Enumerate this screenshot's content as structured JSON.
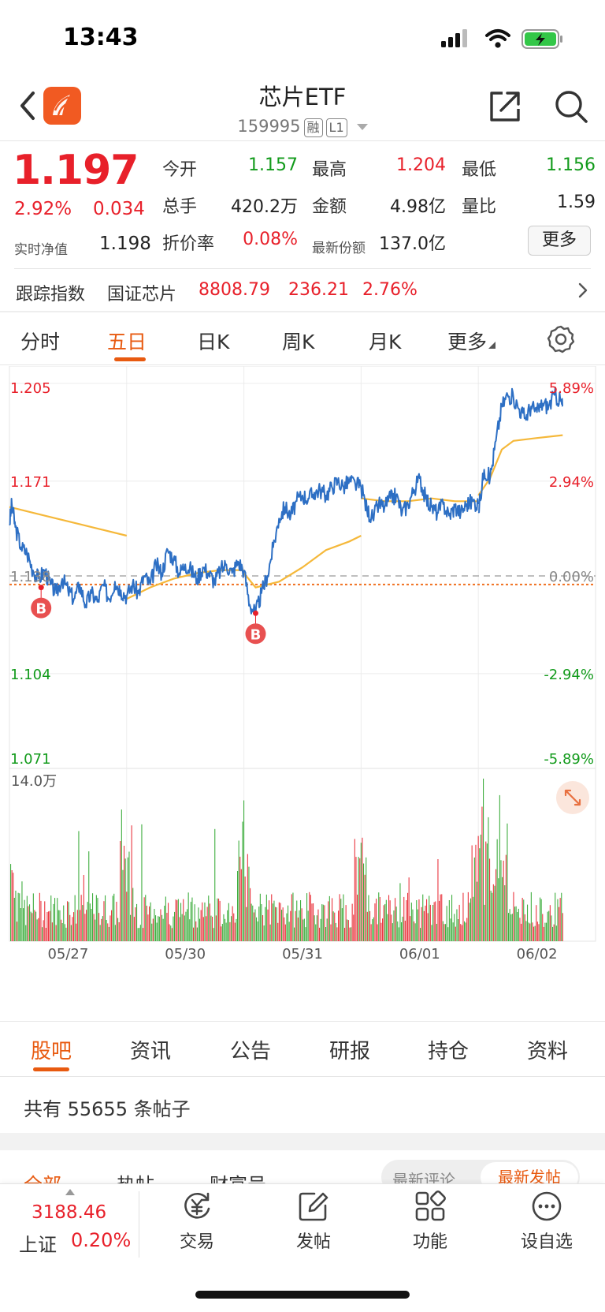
{
  "status_bar": {
    "time": "13:43"
  },
  "header": {
    "title": "芯片ETF",
    "code": "159995",
    "tag_margin": "融",
    "tag_level": "L1"
  },
  "quote": {
    "price": "1.197",
    "change_pct": "2.92%",
    "change_amt": "0.034",
    "nav_label": "实时净值",
    "nav_value": "1.198",
    "fields": [
      {
        "label": "今开",
        "value": "1.157",
        "color": "#139b1c"
      },
      {
        "label": "最高",
        "value": "1.204",
        "color": "#e8202a"
      },
      {
        "label": "最低",
        "value": "1.156",
        "color": "#139b1c"
      },
      {
        "label": "总手",
        "value": "420.2万",
        "color": "#222222"
      },
      {
        "label": "金额",
        "value": "4.98亿",
        "color": "#222222"
      },
      {
        "label": "量比",
        "value": "1.59",
        "color": "#222222"
      },
      {
        "label": "折价率",
        "value": "0.08%",
        "color": "#e8202a"
      },
      {
        "label": "最新份额",
        "value": "137.0亿",
        "color": "#222222"
      }
    ],
    "more_label": "更多"
  },
  "tracking": {
    "label": "跟踪指数",
    "index_name": "国证芯片",
    "value": "8808.79",
    "change": "236.21",
    "change_pct": "2.76%"
  },
  "chart_tabs": [
    "分时",
    "五日",
    "日K",
    "周K",
    "月K",
    "更多"
  ],
  "chart_data": {
    "type": "line",
    "period": "五日",
    "y_ticks_left": [
      "1.205",
      "1.171",
      "1.138",
      "1.104",
      "1.071"
    ],
    "y_ticks_right": [
      "5.89%",
      "2.94%",
      "0.00%",
      "-2.94%",
      "-5.89%"
    ],
    "ylim": [
      1.071,
      1.205
    ],
    "prev_close": 1.138,
    "cost_line": 1.135,
    "x_labels": [
      "05/27",
      "05/30",
      "05/31",
      "06/01",
      "06/02"
    ],
    "volume_max_label": "14.0万",
    "buy_marker_label": "B",
    "price_series": [
      [
        [
          0,
          1.156
        ],
        [
          0.02,
          1.163
        ],
        [
          0.05,
          1.155
        ],
        [
          0.1,
          1.148
        ],
        [
          0.15,
          1.146
        ],
        [
          0.2,
          1.14
        ],
        [
          0.25,
          1.137
        ],
        [
          0.3,
          1.14
        ],
        [
          0.35,
          1.135
        ],
        [
          0.4,
          1.132
        ],
        [
          0.45,
          1.137
        ],
        [
          0.5,
          1.133
        ],
        [
          0.55,
          1.13
        ],
        [
          0.6,
          1.135
        ],
        [
          0.65,
          1.128
        ],
        [
          0.7,
          1.132
        ],
        [
          0.75,
          1.129
        ],
        [
          0.8,
          1.135
        ],
        [
          0.85,
          1.13
        ],
        [
          0.9,
          1.136
        ],
        [
          0.95,
          1.133
        ],
        [
          1.0,
          1.131
        ]
      ],
      [
        [
          1.0,
          1.131
        ],
        [
          1.05,
          1.135
        ],
        [
          1.1,
          1.132
        ],
        [
          1.15,
          1.138
        ],
        [
          1.2,
          1.135
        ],
        [
          1.25,
          1.142
        ],
        [
          1.3,
          1.139
        ],
        [
          1.35,
          1.147
        ],
        [
          1.4,
          1.144
        ],
        [
          1.45,
          1.139
        ],
        [
          1.5,
          1.142
        ],
        [
          1.55,
          1.14
        ],
        [
          1.6,
          1.137
        ],
        [
          1.65,
          1.141
        ],
        [
          1.7,
          1.139
        ],
        [
          1.75,
          1.136
        ],
        [
          1.8,
          1.14
        ],
        [
          1.85,
          1.142
        ],
        [
          1.9,
          1.139
        ],
        [
          1.95,
          1.143
        ],
        [
          2.0,
          1.14
        ]
      ],
      [
        [
          2.0,
          1.14
        ],
        [
          2.05,
          1.128
        ],
        [
          2.1,
          1.125
        ],
        [
          2.15,
          1.132
        ],
        [
          2.2,
          1.138
        ],
        [
          2.25,
          1.148
        ],
        [
          2.3,
          1.158
        ],
        [
          2.35,
          1.162
        ],
        [
          2.4,
          1.159
        ],
        [
          2.45,
          1.164
        ],
        [
          2.5,
          1.166
        ],
        [
          2.55,
          1.165
        ],
        [
          2.6,
          1.167
        ],
        [
          2.65,
          1.168
        ],
        [
          2.7,
          1.166
        ],
        [
          2.75,
          1.169
        ],
        [
          2.8,
          1.171
        ],
        [
          2.85,
          1.169
        ],
        [
          2.9,
          1.171
        ],
        [
          2.95,
          1.17
        ],
        [
          3.0,
          1.169
        ]
      ],
      [
        [
          3.0,
          1.169
        ],
        [
          3.05,
          1.161
        ],
        [
          3.1,
          1.158
        ],
        [
          3.15,
          1.163
        ],
        [
          3.2,
          1.162
        ],
        [
          3.25,
          1.165
        ],
        [
          3.3,
          1.166
        ],
        [
          3.35,
          1.16
        ],
        [
          3.4,
          1.163
        ],
        [
          3.45,
          1.168
        ],
        [
          3.5,
          1.172
        ],
        [
          3.55,
          1.165
        ],
        [
          3.6,
          1.162
        ],
        [
          3.65,
          1.16
        ],
        [
          3.7,
          1.163
        ],
        [
          3.75,
          1.159
        ],
        [
          3.8,
          1.162
        ],
        [
          3.85,
          1.16
        ],
        [
          3.9,
          1.163
        ],
        [
          3.95,
          1.164
        ],
        [
          4.0,
          1.163
        ]
      ],
      [
        [
          4.0,
          1.16
        ],
        [
          4.05,
          1.175
        ],
        [
          4.1,
          1.172
        ],
        [
          4.15,
          1.185
        ],
        [
          4.2,
          1.197
        ],
        [
          4.25,
          1.201
        ],
        [
          4.3,
          1.2
        ],
        [
          4.35,
          1.196
        ],
        [
          4.4,
          1.193
        ],
        [
          4.45,
          1.197
        ],
        [
          4.5,
          1.195
        ],
        [
          4.55,
          1.198
        ],
        [
          4.6,
          1.197
        ],
        [
          4.65,
          1.201
        ],
        [
          4.7,
          1.199
        ],
        [
          4.72,
          1.197
        ]
      ]
    ],
    "avg_series": [
      [
        [
          0,
          1.162
        ],
        [
          0.2,
          1.16
        ],
        [
          0.4,
          1.158
        ],
        [
          0.6,
          1.156
        ],
        [
          0.8,
          1.154
        ],
        [
          1.0,
          1.152
        ]
      ],
      [
        [
          1.0,
          1.13
        ],
        [
          1.2,
          1.134
        ],
        [
          1.4,
          1.137
        ],
        [
          1.6,
          1.139
        ],
        [
          1.8,
          1.14
        ],
        [
          2.0,
          1.14
        ]
      ],
      [
        [
          2.0,
          1.139
        ],
        [
          2.1,
          1.134
        ],
        [
          2.3,
          1.136
        ],
        [
          2.5,
          1.141
        ],
        [
          2.7,
          1.147
        ],
        [
          2.9,
          1.15
        ],
        [
          3.0,
          1.152
        ]
      ],
      [
        [
          3.0,
          1.165
        ],
        [
          3.2,
          1.164
        ],
        [
          3.4,
          1.164
        ],
        [
          3.6,
          1.165
        ],
        [
          3.8,
          1.164
        ],
        [
          4.0,
          1.164
        ]
      ],
      [
        [
          4.0,
          1.166
        ],
        [
          4.1,
          1.172
        ],
        [
          4.2,
          1.182
        ],
        [
          4.3,
          1.185
        ],
        [
          4.5,
          1.186
        ],
        [
          4.72,
          1.187
        ]
      ]
    ],
    "buy_markers": [
      [
        0.27,
        1.134
      ],
      [
        2.1,
        1.125
      ]
    ]
  },
  "bottom_tabs": [
    "股吧",
    "资讯",
    "公告",
    "研报",
    "持仓",
    "资料"
  ],
  "posts": {
    "count_text": "共有 55655 条帖子"
  },
  "sub_tabs": [
    "全部",
    "热帖",
    "财富号"
  ],
  "sort_options": [
    "最新评论",
    "最新发帖"
  ],
  "bottom_nav": {
    "index_value": "3188.46",
    "index_name": "上证",
    "index_change": "0.20%",
    "items": [
      {
        "label": "交易",
        "icon": "yen-refresh-icon"
      },
      {
        "label": "发帖",
        "icon": "edit-icon"
      },
      {
        "label": "功能",
        "icon": "grid-icon"
      },
      {
        "label": "设自选",
        "icon": "more-dots-icon"
      }
    ]
  }
}
